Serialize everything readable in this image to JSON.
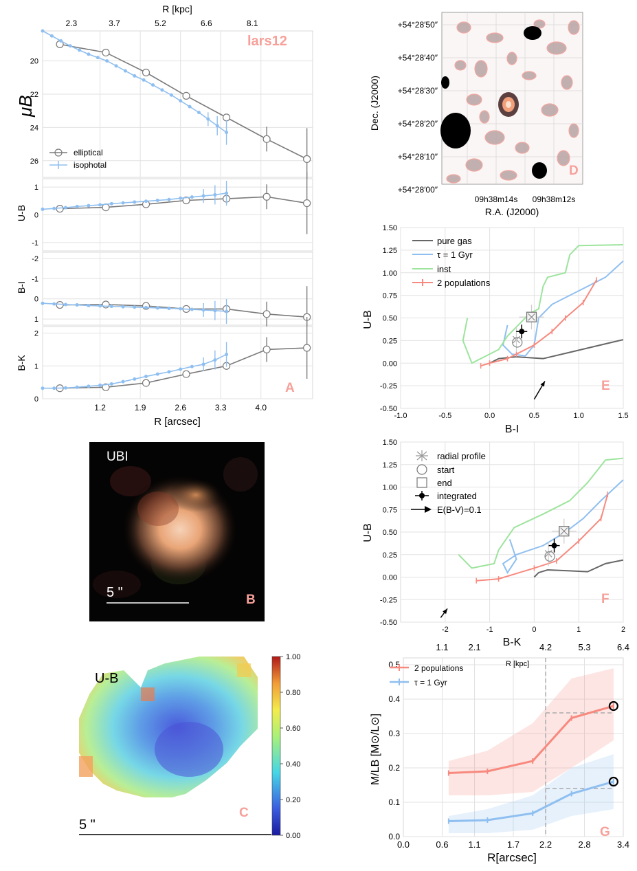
{
  "colors": {
    "elliptical": "#7a7a7a",
    "isophotal": "#8fbff0",
    "pure_gas": "#666666",
    "tau1": "#8fbff0",
    "inst": "#9de49d",
    "two_pop": "#f7897e",
    "panel_letter": "#f7a09a",
    "grid": "#e2e2e2"
  },
  "panelA": {
    "letter": "A",
    "galaxy_name": "lars12",
    "top_axis_label": "R [kpc]",
    "top_ticks": [
      "2.3",
      "3.7",
      "5.2",
      "6.6",
      "8.1"
    ],
    "bottom_axis_label": "R [arcsec]",
    "bottom_ticks": [
      "1.2",
      "1.9",
      "2.6",
      "3.3",
      "4.0"
    ],
    "legend": [
      "elliptical",
      "isophotal"
    ]
  },
  "panelB": {
    "letter": "B",
    "label": "UBI",
    "scale": "5 \""
  },
  "panelC": {
    "letter": "C",
    "label": "U-B",
    "scale": "5 \"",
    "colorbar_ticks": [
      "1.00",
      "0.80",
      "0.60",
      "0.40",
      "0.20",
      "0.00"
    ]
  },
  "panelD": {
    "letter": "D",
    "xlabel": "R.A. (J2000)",
    "ylabel": "Dec. (J2000)",
    "xticks": [
      "09h38m14s",
      "09h38m12s"
    ],
    "yticks": [
      "+54°28′50″",
      "+54°28′40″",
      "+54°28′30″",
      "+54°28′20″",
      "+54°28′10″",
      "+54°28′00″"
    ]
  },
  "panelE": {
    "letter": "E",
    "legend": [
      "pure gas",
      "τ = 1 Gyr",
      "inst",
      "2 populations"
    ]
  },
  "panelF": {
    "letter": "F",
    "legend": [
      "radial profile",
      "start",
      "end",
      "integrated",
      "E(B-V)=0.1"
    ]
  },
  "panelG": {
    "letter": "G",
    "legend": [
      "2 populations",
      "τ = 1 Gyr"
    ]
  },
  "chart_data": [
    {
      "id": "A-mu",
      "type": "line",
      "ylabel": "μB",
      "ylim": [
        27,
        18.2
      ],
      "yticks": [
        20,
        22,
        24,
        26
      ],
      "xlim": [
        0.2,
        4.9
      ],
      "series": [
        {
          "name": "elliptical",
          "x": [
            0.5,
            1.3,
            2.0,
            2.7,
            3.4,
            4.1,
            4.8
          ],
          "y": [
            19.0,
            19.5,
            20.7,
            22.1,
            23.4,
            24.7,
            25.9
          ]
        },
        {
          "name": "isophotal",
          "x": [
            0.2,
            0.36,
            0.52,
            0.68,
            0.84,
            1.0,
            1.16,
            1.32,
            1.48,
            1.64,
            1.8,
            1.96,
            2.12,
            2.28,
            2.44,
            2.6,
            2.76,
            2.92,
            3.08,
            3.24,
            3.4
          ],
          "y": [
            18.2,
            18.5,
            18.8,
            19.1,
            19.35,
            19.6,
            19.8,
            20.0,
            20.3,
            20.6,
            20.9,
            21.15,
            21.45,
            21.75,
            22.05,
            22.4,
            22.75,
            23.1,
            23.5,
            23.9,
            24.3
          ]
        }
      ]
    },
    {
      "id": "A-UB",
      "type": "line",
      "ylabel": "U-B",
      "ylim": [
        -1.3,
        1.3
      ],
      "yticks": [
        -1,
        0,
        1
      ],
      "series": [
        {
          "name": "elliptical",
          "x": [
            0.5,
            1.3,
            2.0,
            2.7,
            3.4,
            4.1,
            4.8
          ],
          "y": [
            0.22,
            0.27,
            0.38,
            0.52,
            0.58,
            0.65,
            0.42
          ]
        },
        {
          "name": "isophotal",
          "x": [
            0.2,
            0.4,
            0.6,
            0.8,
            1.0,
            1.2,
            1.4,
            1.6,
            1.8,
            2.0,
            2.2,
            2.4,
            2.6,
            2.8,
            3.0,
            3.2,
            3.4
          ],
          "y": [
            0.2,
            0.23,
            0.26,
            0.3,
            0.33,
            0.36,
            0.4,
            0.43,
            0.46,
            0.49,
            0.52,
            0.55,
            0.6,
            0.64,
            0.68,
            0.72,
            0.78
          ]
        }
      ]
    },
    {
      "id": "A-BI",
      "type": "line",
      "ylabel": "B-I",
      "ylim": [
        1.3,
        -2.3
      ],
      "yticks": [
        -2,
        -1,
        0,
        1
      ],
      "series": [
        {
          "name": "elliptical",
          "x": [
            0.5,
            1.3,
            2.0,
            2.7,
            3.4,
            4.1,
            4.8
          ],
          "y": [
            0.3,
            0.28,
            0.35,
            0.5,
            0.5,
            0.75,
            0.9
          ]
        },
        {
          "name": "isophotal",
          "x": [
            0.2,
            0.4,
            0.6,
            0.8,
            1.0,
            1.2,
            1.4,
            1.6,
            1.8,
            2.0,
            2.2,
            2.4,
            2.6,
            2.8,
            3.0,
            3.2,
            3.4
          ],
          "y": [
            0.22,
            0.25,
            0.28,
            0.3,
            0.33,
            0.35,
            0.37,
            0.39,
            0.41,
            0.43,
            0.45,
            0.47,
            0.49,
            0.52,
            0.55,
            0.58,
            0.62
          ]
        }
      ]
    },
    {
      "id": "A-BK",
      "type": "line",
      "ylabel": "B-K",
      "ylim": [
        0,
        2.2
      ],
      "yticks": [
        0,
        1,
        2
      ],
      "series": [
        {
          "name": "elliptical",
          "x": [
            0.5,
            1.3,
            2.0,
            2.7,
            3.4,
            4.1,
            4.8
          ],
          "y": [
            0.32,
            0.35,
            0.48,
            0.75,
            1.0,
            1.5,
            1.55
          ]
        },
        {
          "name": "isophotal",
          "x": [
            0.2,
            0.4,
            0.6,
            0.8,
            1.0,
            1.2,
            1.4,
            1.6,
            1.8,
            2.0,
            2.2,
            2.4,
            2.6,
            2.8,
            3.0,
            3.2,
            3.4
          ],
          "y": [
            0.32,
            0.32,
            0.33,
            0.35,
            0.38,
            0.41,
            0.45,
            0.52,
            0.6,
            0.68,
            0.75,
            0.82,
            0.9,
            0.98,
            1.05,
            1.18,
            1.35
          ]
        }
      ]
    },
    {
      "id": "E",
      "type": "line",
      "xlabel": "B-I",
      "ylabel": "U-B",
      "xlim": [
        -1.0,
        1.5
      ],
      "ylim": [
        -0.5,
        1.5
      ],
      "xticks": [
        -1.0,
        -0.5,
        0.0,
        0.5,
        1.0,
        1.5
      ],
      "yticks": [
        -0.5,
        -0.25,
        0.0,
        0.25,
        0.5,
        0.75,
        1.0,
        1.25,
        1.5
      ],
      "series": [
        {
          "name": "pure gas",
          "x": [
            0.0,
            0.1,
            0.3,
            0.6,
            0.9,
            1.2,
            1.5
          ],
          "y": [
            0.0,
            0.05,
            0.07,
            0.05,
            0.12,
            0.19,
            0.26
          ]
        },
        {
          "name": "τ = 1 Gyr",
          "x": [
            0.2,
            0.15,
            0.25,
            0.4,
            0.5,
            0.55,
            0.7,
            0.9,
            1.1,
            1.3,
            1.5
          ],
          "y": [
            0.42,
            0.2,
            0.1,
            0.08,
            0.2,
            0.5,
            0.65,
            0.75,
            0.85,
            0.95,
            1.13
          ]
        },
        {
          "name": "inst",
          "x": [
            -0.25,
            -0.3,
            -0.2,
            0.1,
            0.2,
            0.35,
            0.45,
            0.55,
            0.6,
            0.65,
            0.85,
            0.9,
            1.0,
            1.5
          ],
          "y": [
            0.5,
            0.25,
            0.0,
            0.15,
            0.3,
            0.45,
            0.55,
            0.6,
            0.85,
            0.95,
            1.0,
            1.2,
            1.3,
            1.31
          ]
        },
        {
          "name": "2 populations",
          "x": [
            -0.1,
            0.0,
            0.2,
            0.3,
            0.5,
            0.7,
            0.85,
            1.05,
            1.2
          ],
          "y": [
            -0.03,
            0.0,
            0.05,
            0.1,
            0.2,
            0.35,
            0.5,
            0.67,
            0.92
          ]
        }
      ],
      "points": {
        "radial_profile": [
          0.3,
          0.26
        ],
        "start": [
          0.31,
          0.23
        ],
        "end": [
          0.47,
          0.51
        ],
        "integrated": [
          0.36,
          0.35
        ]
      },
      "reddening_vector": {
        "from": [
          0.5,
          -0.4
        ],
        "to": [
          0.62,
          -0.2
        ]
      }
    },
    {
      "id": "F",
      "type": "line",
      "xlabel": "B-K",
      "ylabel": "U-B",
      "xlim": [
        -3,
        2
      ],
      "ylim": [
        -0.5,
        1.5
      ],
      "xticks": [
        -2,
        -1,
        0,
        1,
        2
      ],
      "yticks": [
        -0.5,
        -0.25,
        0.0,
        0.25,
        0.5,
        0.75,
        1.0,
        1.25,
        1.5
      ],
      "series": [
        {
          "name": "pure gas",
          "x": [
            0.0,
            0.1,
            0.3,
            0.8,
            1.2,
            1.6,
            2.0
          ],
          "y": [
            0.0,
            0.05,
            0.08,
            0.07,
            0.06,
            0.15,
            0.19
          ]
        },
        {
          "name": "τ = 1 Gyr",
          "x": [
            -0.55,
            -0.4,
            -0.6,
            -0.7,
            -0.4,
            0.2,
            0.7,
            1.1,
            1.5,
            2.0
          ],
          "y": [
            0.42,
            0.2,
            0.05,
            0.15,
            0.25,
            0.35,
            0.5,
            0.65,
            0.85,
            1.08
          ]
        },
        {
          "name": "inst",
          "x": [
            -1.7,
            -1.4,
            -0.9,
            -0.8,
            -0.45,
            0.2,
            0.8,
            1.2,
            1.6,
            2.0
          ],
          "y": [
            0.25,
            0.1,
            0.15,
            0.3,
            0.55,
            0.7,
            0.85,
            1.05,
            1.3,
            1.32
          ]
        },
        {
          "name": "2 populations",
          "x": [
            -1.3,
            -0.8,
            0.0,
            0.5,
            1.0,
            1.5,
            1.65
          ],
          "y": [
            -0.04,
            -0.02,
            0.1,
            0.18,
            0.4,
            0.65,
            0.92
          ]
        }
      ],
      "points": {
        "radial_profile": [
          0.32,
          0.26
        ],
        "start": [
          0.35,
          0.23
        ],
        "end": [
          0.67,
          0.51
        ],
        "integrated": [
          0.45,
          0.35
        ]
      },
      "reddening_vector": {
        "from": [
          -2.1,
          -0.45
        ],
        "to": [
          -1.95,
          -0.35
        ]
      }
    },
    {
      "id": "G",
      "type": "line",
      "xlabel": "R[arcsec]",
      "ylabel": "M/LB [M⊙/L⊙]",
      "top_xlabel": "R [kpc]",
      "xlim": [
        0.0,
        3.4
      ],
      "ylim": [
        0.0,
        0.52
      ],
      "xticks": [
        "0.0",
        "0.6",
        "1.1",
        "1.7",
        "2.2",
        "2.8",
        "3.4"
      ],
      "top_xticks": [
        "1.1",
        "2.1",
        "4.2",
        "5.3",
        "6.4"
      ],
      "yticks": [
        0.0,
        0.1,
        0.2,
        0.3,
        0.4,
        0.5
      ],
      "series": [
        {
          "name": "2 populations",
          "x": [
            0.7,
            1.3,
            2.0,
            2.6,
            3.25
          ],
          "y": [
            0.185,
            0.19,
            0.22,
            0.345,
            0.38
          ]
        },
        {
          "name": "τ = 1 Gyr",
          "x": [
            0.7,
            1.3,
            2.0,
            2.6,
            3.25
          ],
          "y": [
            0.045,
            0.048,
            0.068,
            0.125,
            0.16
          ]
        }
      ],
      "band_2pop": {
        "lower": [
          0.12,
          0.12,
          0.13,
          0.2,
          0.28
        ],
        "upper": [
          0.22,
          0.25,
          0.33,
          0.46,
          0.49
        ]
      },
      "band_tau": {
        "lower": [
          0.01,
          0.01,
          0.02,
          0.06,
          0.08
        ],
        "upper": [
          0.06,
          0.08,
          0.12,
          0.2,
          0.24
        ]
      },
      "vline_x": 2.2,
      "hline_2pop": 0.36,
      "hline_tau": 0.14
    }
  ]
}
